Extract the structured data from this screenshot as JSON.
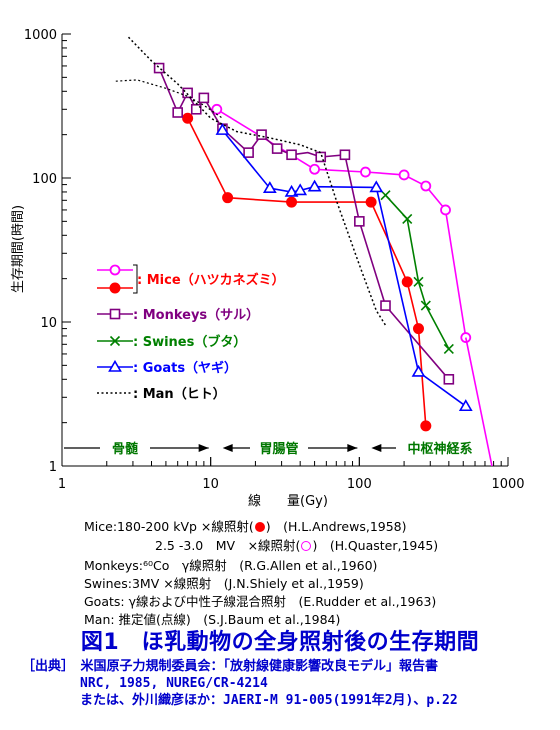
{
  "chart_data": {
    "type": "line",
    "xscale": "log",
    "yscale": "log",
    "xlim": [
      1,
      1000
    ],
    "ylim": [
      1,
      1000
    ],
    "xlabel": "線　　量(Gy)",
    "ylabel": "生存期間(時間)",
    "x_ticks": [
      "1",
      "10",
      "100",
      "1000"
    ],
    "y_ticks": [
      "1000",
      "100",
      "10",
      "1"
    ],
    "regions": [
      {
        "label": "骨髄",
        "color": "#007700"
      },
      {
        "label": "胃腸管",
        "color": "#007700"
      },
      {
        "label": "中枢神経系",
        "color": "#007700"
      }
    ],
    "series": [
      {
        "name": "Mice（ハツカネズミ）",
        "key": "mice_open",
        "color": "#ff00ff",
        "marker": "circle-open",
        "x": [
          11,
          50,
          110,
          200,
          280,
          380,
          520
        ],
        "y": [
          300,
          115,
          110,
          105,
          88,
          60,
          7.8
        ]
      },
      {
        "name": "Mice（ハツカネズミ）",
        "key": "mice_filled",
        "color": "#ff0000",
        "marker": "circle-filled",
        "x": [
          7,
          13,
          35,
          120,
          210,
          250,
          280
        ],
        "y": [
          260,
          73,
          68,
          68,
          19,
          9,
          1.9
        ]
      },
      {
        "name": "Monkeys（サル）",
        "key": "monkeys",
        "color": "#800080",
        "marker": "square-open",
        "x": [
          4.5,
          6,
          7,
          8,
          9,
          12,
          18,
          22,
          28,
          35,
          45,
          55,
          80,
          100,
          150,
          400
        ],
        "y": [
          580,
          285,
          390,
          300,
          360,
          220,
          150,
          200,
          160,
          145,
          150,
          140,
          145,
          50,
          13,
          4
        ],
        "marker_idx": [
          0,
          1,
          2,
          3,
          4,
          5,
          6,
          7,
          8,
          9,
          11,
          12,
          13,
          14,
          15
        ]
      },
      {
        "name": "Swines（ブタ）",
        "key": "swines",
        "color": "#008000",
        "marker": "x",
        "x": [
          150,
          210,
          250,
          280,
          400
        ],
        "y": [
          76,
          52,
          19,
          13,
          6.5
        ]
      },
      {
        "name": "Goats（ヤギ）",
        "key": "goats",
        "color": "#0000ff",
        "marker": "triangle-open",
        "x": [
          12,
          25,
          35,
          40,
          50,
          130,
          250,
          520
        ],
        "y": [
          215,
          85,
          80,
          82,
          87,
          86,
          4.5,
          2.6
        ]
      },
      {
        "name": "Man（ヒト）",
        "key": "man",
        "color": "#000000",
        "marker": "none",
        "dash": true,
        "x": [
          2.8,
          4,
          6,
          8,
          10,
          15,
          25,
          40,
          55,
          70,
          100,
          130,
          150
        ],
        "y": [
          950,
          650,
          450,
          330,
          260,
          210,
          190,
          170,
          150,
          70,
          25,
          12,
          9.5
        ],
        "x2": [
          2.3,
          3.2,
          5,
          7,
          9,
          12
        ],
        "y2": [
          470,
          480,
          420,
          370,
          320,
          260
        ]
      }
    ],
    "legend_text": {
      "mice": ": Mice（ハツカネズミ）",
      "monkeys": ": Monkeys（サル）",
      "swines": ": Swines（ブタ）",
      "goats": ": Goats（ヤギ）",
      "man": ": Man（ヒト）"
    }
  },
  "notes": {
    "mice1_a": "Mice:180-200 kVp ×線照射(",
    "mice1_b": ")　(H.L.Andrews,1958)",
    "mice2_a": "2.5 -3.0　MV　×線照射(",
    "mice2_b": ")　(H.Quaster,1945)",
    "monkeys": "Monkeys:⁶⁰Co　γ線照射　(R.G.Allen et al.,1960)",
    "swines": "Swines:3MV ×線照射　(J.N.Shiely et al.,1959)",
    "goats": "Goats: γ線および中性子線混合照射　(E.Rudder et al.,1963)",
    "man": "Man: 推定値(点線)　(S.J.Baum et al.,1984)"
  },
  "figure_title": "図1　ほ乳動物の全身照射後の生存期間",
  "source": {
    "line1": "［出典］　米国原子力規制委員会：「放射線健康影響改良モデル」報告書",
    "line2": "NRC, 1985, NUREG/CR-4214",
    "line3": "または、外川織彦ほか：JAERI-M 91-005(1991年2月)、p.22"
  },
  "colors": {
    "mice_open": "#ff00ff",
    "mice_filled": "#ff0000",
    "monkeys": "#800080",
    "swines": "#008000",
    "goats": "#0000ff",
    "regions": "#007700",
    "title": "#0000cc"
  }
}
